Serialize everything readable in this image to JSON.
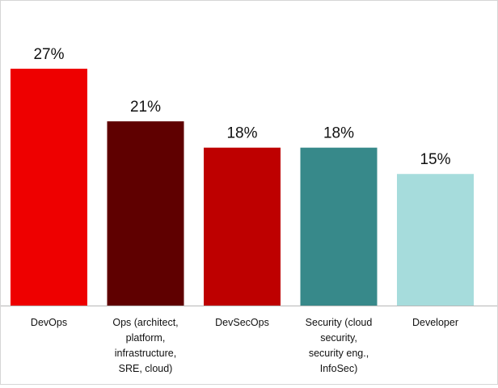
{
  "chart_data": {
    "type": "bar",
    "categories": [
      "DevOps",
      "Ops (architect, platform, infrastructure, SRE, cloud)",
      "DevSecOps",
      "Security (cloud security, security eng., InfoSec)",
      "Developer"
    ],
    "category_lines": [
      [
        "DevOps"
      ],
      [
        "Ops (architect,",
        "platform,",
        "infrastructure,",
        "SRE, cloud)"
      ],
      [
        "DevSecOps"
      ],
      [
        "Security (cloud",
        "security,",
        "security eng.,",
        "InfoSec)"
      ],
      [
        "Developer"
      ]
    ],
    "values": [
      27,
      21,
      18,
      18,
      15
    ],
    "value_labels": [
      "27%",
      "21%",
      "18%",
      "18%",
      "15%"
    ],
    "colors": [
      "#ee0000",
      "#5f0000",
      "#be0000",
      "#37898a",
      "#a6dcdc"
    ],
    "title": "",
    "xlabel": "",
    "ylabel": "",
    "ylim": [
      0,
      27
    ],
    "grid": false,
    "legend": "none"
  }
}
